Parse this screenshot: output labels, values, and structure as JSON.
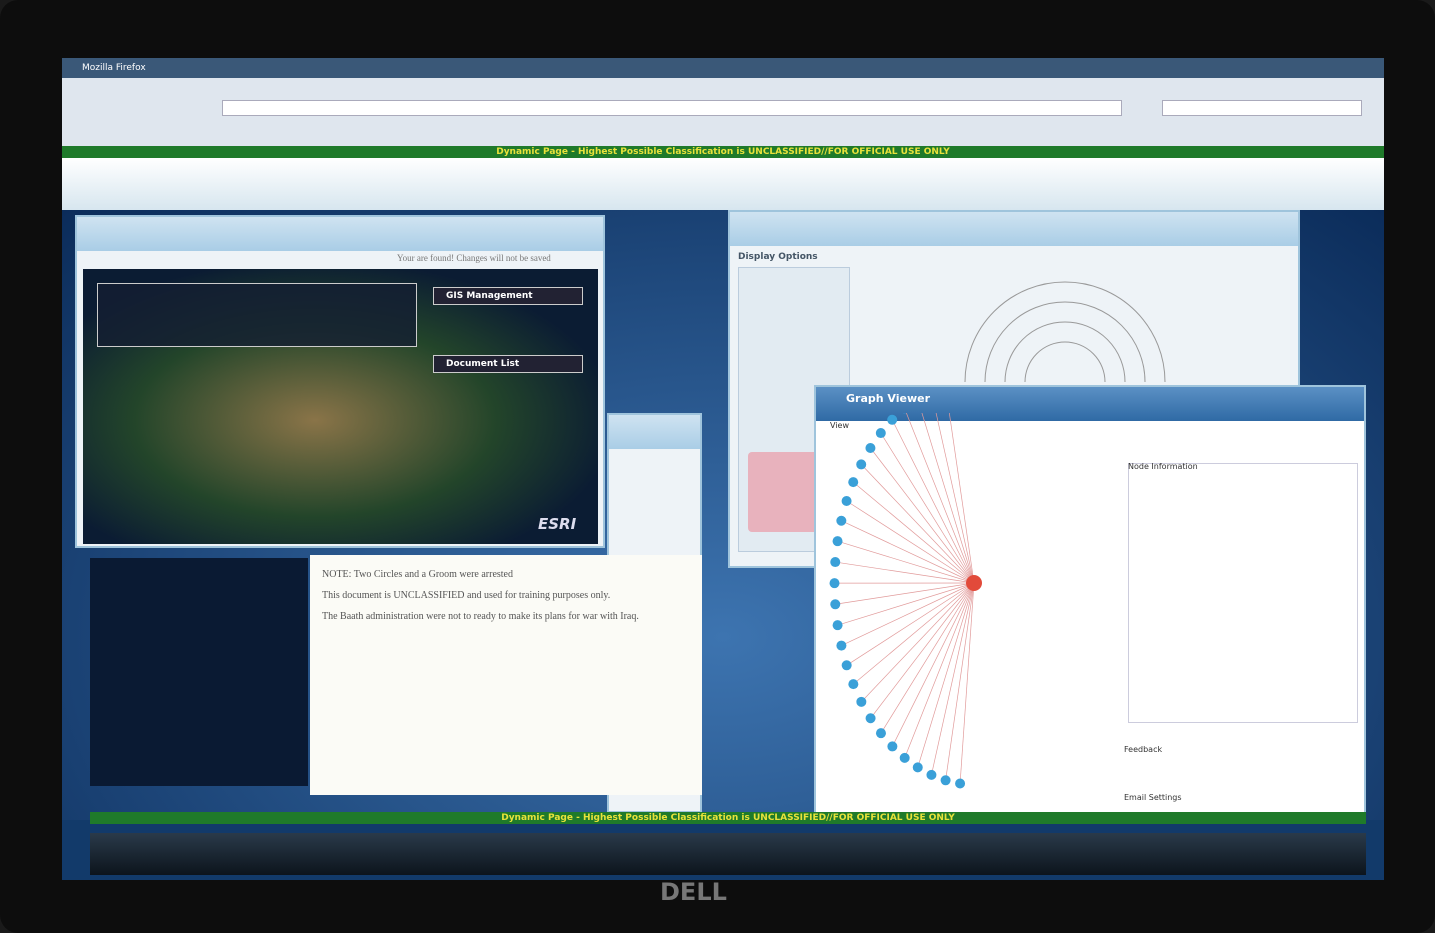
{
  "browser": {
    "title": "Mozilla Firefox"
  },
  "banner_top": "Dynamic Page - Highest Possible Classification is UNCLASSIFIED//FOR OFFICIAL USE ONLY",
  "banner_bottom": "Dynamic Page - Highest Possible Classification is UNCLASSIFIED//FOR OFFICIAL USE ONLY",
  "map_window": {
    "notice": "Your are found! Changes will not be saved",
    "gis": "GIS Management",
    "document_list": "Document List",
    "logo": "ESRI"
  },
  "document": {
    "paragraphs": [
      "NOTE: Two Circles and a Groom were arrested",
      "This document is UNCLASSIFIED and used for training purposes only.",
      "The Baath administration were not to ready to make its plans for war with Iraq."
    ]
  },
  "right_window": {
    "display_options": "Display Options"
  },
  "graph_viewer": {
    "title": "Graph Viewer",
    "tab": "View",
    "node_information": "Node Information",
    "feedback": "Feedback",
    "email_settings": "Email Settings"
  },
  "monitor": {
    "brand": "DELL"
  }
}
